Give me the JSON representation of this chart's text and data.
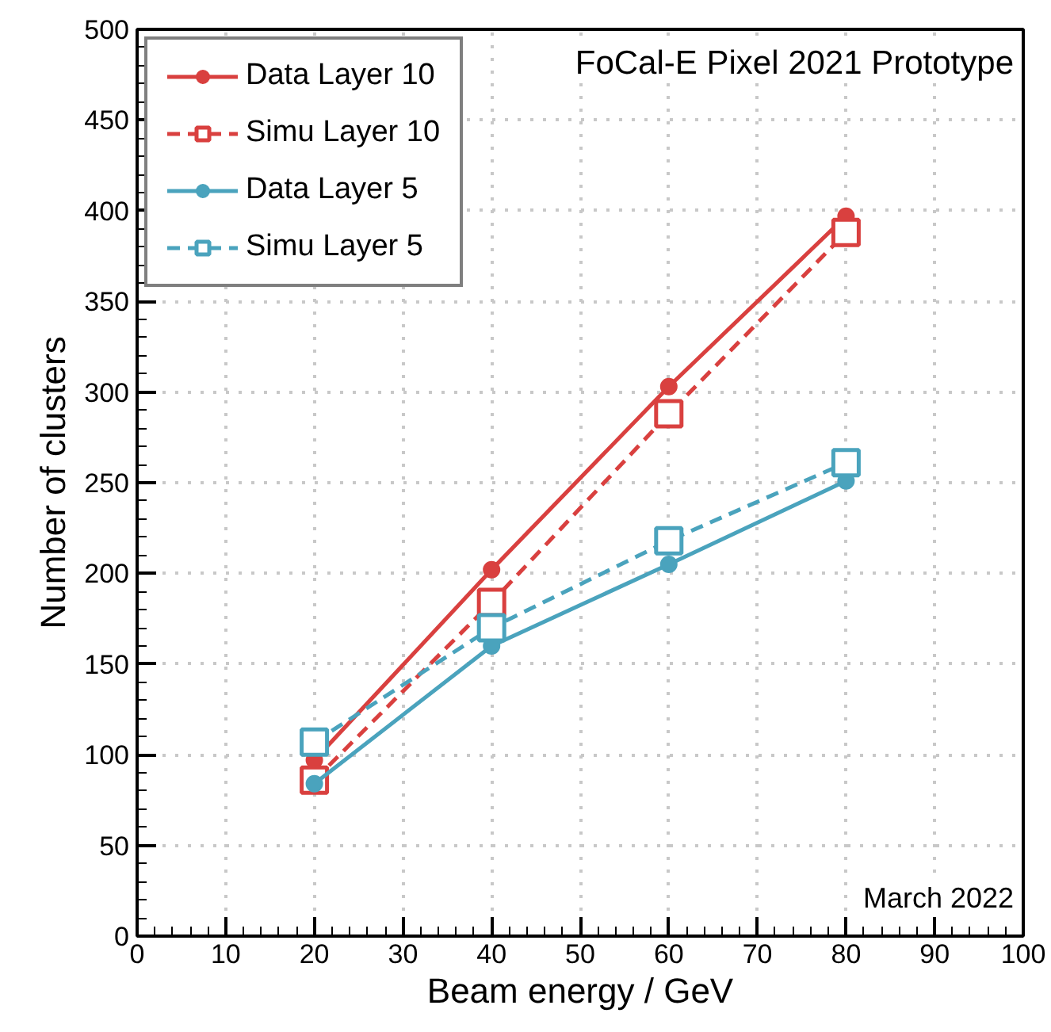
{
  "chart_data": {
    "type": "line",
    "title": "FoCal-E Pixel 2021 Prototype",
    "xlabel": "Beam energy / GeV",
    "ylabel": "Number of clusters",
    "annotations": [
      "March 2022"
    ],
    "x": [
      20,
      40,
      60,
      80
    ],
    "series": [
      {
        "name": "Data Layer 10",
        "color": "#d9403f",
        "values": [
          97,
          202,
          303,
          397
        ],
        "marker": "circle",
        "line_style": "solid"
      },
      {
        "name": "Simu Layer 10",
        "color": "#d9403f",
        "values": [
          86,
          184,
          288,
          388
        ],
        "marker": "square",
        "line_style": "dashed"
      },
      {
        "name": "Data Layer 5",
        "color": "#4aa3bd",
        "values": [
          84,
          160,
          205,
          251
        ],
        "marker": "circle",
        "line_style": "solid"
      },
      {
        "name": "Simu Layer 5",
        "color": "#4aa3bd",
        "values": [
          107,
          170,
          218,
          261
        ],
        "marker": "square",
        "line_style": "dashed"
      }
    ],
    "xlim": [
      0,
      100
    ],
    "xticks": [
      0,
      10,
      20,
      30,
      40,
      50,
      60,
      70,
      80,
      90,
      100
    ],
    "ylim": [
      0,
      500
    ],
    "yticks": [
      0,
      50,
      100,
      150,
      200,
      250,
      300,
      350,
      400,
      450,
      500
    ],
    "grid": true,
    "legend": "top left"
  }
}
